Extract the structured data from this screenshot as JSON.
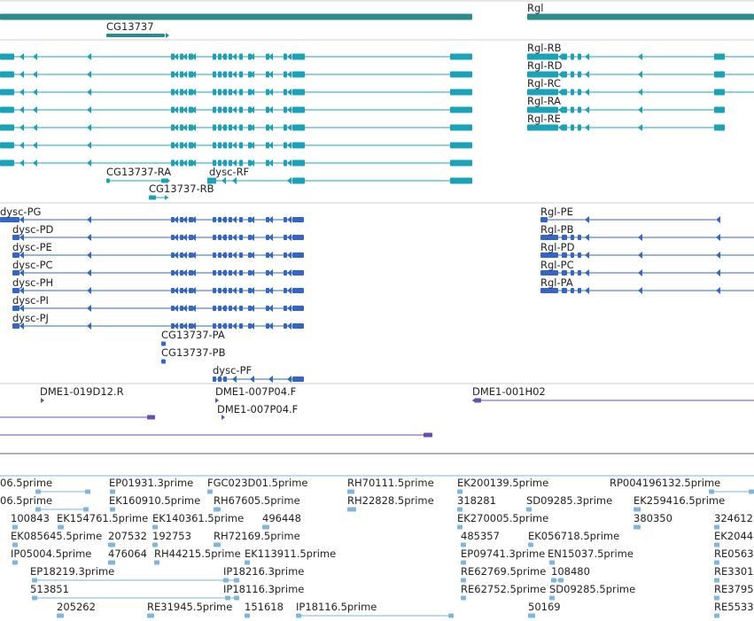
{
  "colors": {
    "gene": "#2e8b8b",
    "transcript": "#1aa3b8",
    "protein": "#3366cc",
    "clone": "#6a4fb0",
    "est": "#7fb6dc",
    "divider": "#cfcfcf"
  },
  "tracks": {
    "genes": [
      {
        "label": "CG13737",
        "strand": "+"
      },
      {
        "label": "Rgl",
        "strand": "-"
      }
    ],
    "transcript_labels": [
      "Rgl-RB",
      "Rgl-RD",
      "Rgl-RC",
      "Rgl-RA",
      "Rgl-RE",
      "CG13737-RA",
      "dysc-RF",
      "CG13737-RB"
    ],
    "protein_labels": [
      "dysc-PG",
      "dysc-PD",
      "dysc-PE",
      "dysc-PC",
      "dysc-PH",
      "dysc-PI",
      "dysc-PJ",
      "CG13737-PA",
      "CG13737-PB",
      "dysc-PF",
      "Rgl-PE",
      "Rgl-PB",
      "Rgl-PD",
      "Rgl-PC",
      "Rgl-PA"
    ],
    "clone_labels": [
      "DME1-019D12.R",
      "DME1-007P04.F",
      "DME1-007P04.F",
      "DME1-001H02"
    ],
    "est_labels": [
      "06.5prime",
      "EP01931.3prime",
      "FGC023D01.5prime",
      "RH70111.5prime",
      "EK200139.5prime",
      "RP004196132.5prime",
      "06.5prime",
      "EK160910.5prime",
      "RH67605.5prime",
      "RH22828.5prime",
      "318281",
      "SD09285.3prime",
      "EK259416.5prime",
      "100843",
      "EK154761.5prime",
      "EK140361.5prime",
      "496448",
      "EK270005.5prime",
      "380350",
      "324612",
      "EK085645.5prime",
      "207532",
      "192753",
      "RH72169.5prime",
      "485357",
      "EK056718.5prime",
      "EK2044",
      "IP05004.5prime",
      "476064",
      "RH44215.5prime",
      "EK113911.5prime",
      "EP09741.3prime",
      "EN15037.5prime",
      "RE0563",
      "EP18219.3prime",
      "IP18216.3prime",
      "RE62769.5prime",
      "108480",
      "RE3301",
      "513851",
      "IP18116.3prime",
      "RE62752.5prime",
      "SD09285.5prime",
      "RE3795",
      "205262",
      "RE31945.5prime",
      "151618",
      "IP18116.5prime",
      "50169",
      "RE5533"
    ]
  }
}
